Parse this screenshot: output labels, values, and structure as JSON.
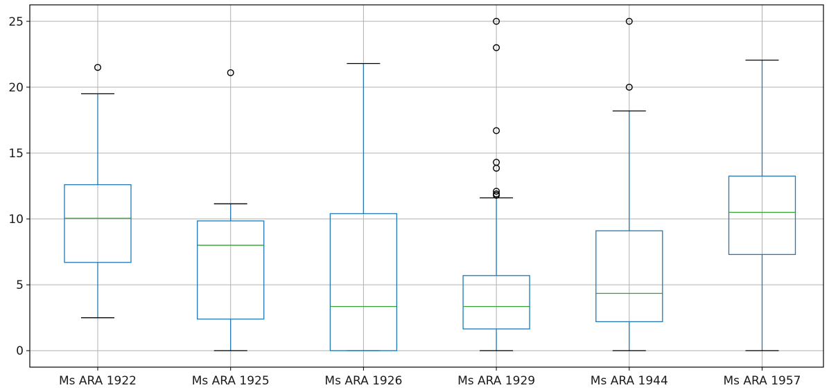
{
  "chart_data": {
    "type": "box",
    "categories": [
      "Ms ARA 1922",
      "Ms ARA 1925",
      "Ms ARA 1926",
      "Ms ARA 1929",
      "Ms ARA 1944",
      "Ms ARA 1957"
    ],
    "boxes": [
      {
        "whisker_low": 2.5,
        "q1": 6.7,
        "median": 10.05,
        "q3": 12.6,
        "whisker_high": 19.5,
        "fliers": [
          21.5
        ]
      },
      {
        "whisker_low": 0,
        "q1": 2.4,
        "median": 8.0,
        "q3": 9.85,
        "whisker_high": 11.15,
        "fliers": [
          21.1
        ]
      },
      {
        "whisker_low": 0,
        "q1": 0,
        "median": 3.35,
        "q3": 10.4,
        "whisker_high": 21.8,
        "fliers": []
      },
      {
        "whisker_low": 0,
        "q1": 1.65,
        "median": 3.35,
        "q3": 5.7,
        "whisker_high": 11.6,
        "fliers": [
          11.8,
          11.9,
          12.1,
          13.85,
          14.3,
          16.7,
          23.0,
          25.0
        ]
      },
      {
        "whisker_low": 0,
        "q1": 2.2,
        "median": 4.35,
        "q3": 9.1,
        "whisker_high": 18.2,
        "fliers": [
          20.0,
          25.0
        ]
      },
      {
        "whisker_low": 0,
        "q1": 7.3,
        "median": 10.5,
        "q3": 13.25,
        "whisker_high": 22.05,
        "fliers": []
      }
    ],
    "yticks": [
      0,
      5,
      10,
      15,
      20,
      25
    ],
    "ylim": [
      -1.25,
      26.25
    ],
    "grid": true,
    "colors": {
      "box": "#1f77b4",
      "median": "#2ca02c",
      "cap": "#000000",
      "flier": "#000000",
      "grid": "#b0b0b0"
    }
  }
}
